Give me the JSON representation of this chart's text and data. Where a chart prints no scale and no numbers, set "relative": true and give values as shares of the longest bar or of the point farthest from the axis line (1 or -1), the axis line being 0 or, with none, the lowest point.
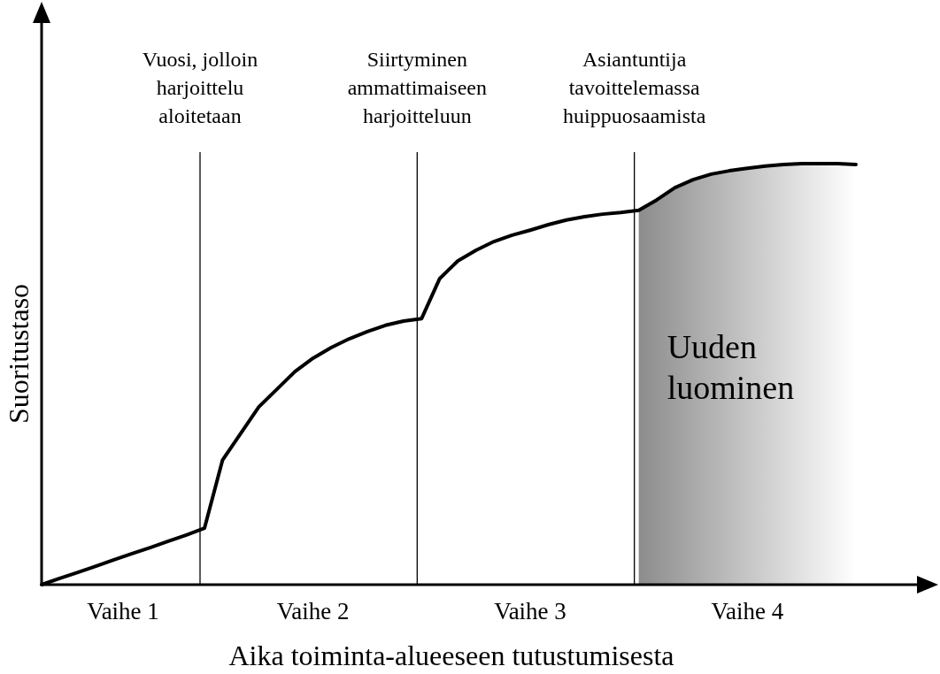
{
  "chart_data": {
    "type": "line",
    "relative": true,
    "xlabel": "Aika toiminta-alueeseen tutustumisesta",
    "ylabel": "Suoritustaso",
    "categories": [
      null,
      null,
      null,
      null,
      null,
      null,
      null,
      null,
      null,
      null,
      null,
      null,
      null,
      null,
      null,
      null,
      null,
      null,
      null,
      null,
      null,
      null,
      null,
      null,
      null,
      null,
      null,
      null,
      null,
      null,
      null,
      null,
      null,
      null,
      null,
      null,
      null,
      null,
      null,
      null,
      null,
      null,
      null,
      null,
      null,
      null
    ],
    "series": [
      {
        "color": "#000000",
        "values": [
          0,
          0.015,
          0.029,
          0.044,
          0.059,
          0.074,
          0.088,
          0.103,
          0.118,
          0.134,
          0.296,
          0.359,
          0.422,
          0.464,
          0.506,
          0.538,
          0.563,
          0.584,
          0.601,
          0.616,
          0.626,
          0.632,
          0.727,
          0.769,
          0.794,
          0.815,
          0.83,
          0.842,
          0.855,
          0.866,
          0.874,
          0.88,
          0.884,
          0.889,
          0.914,
          0.943,
          0.962,
          0.975,
          0.983,
          0.989,
          0.994,
          0.998,
          1,
          1,
          1,
          0.998
        ]
      }
    ],
    "annotations": [
      "Vuosi, jolloin harjoittelu aloitetaan",
      "Siirtyminen ammattimaiseen harjoitteluun",
      "Asiantuntija tavoittelemassa huippuosaamista",
      "Vaihe 1",
      "Vaihe 2",
      "Vaihe 3",
      "Vaihe 4",
      "Uuden luominen"
    ],
    "tick_labels": false,
    "grid": false,
    "legend": false,
    "marker": "none",
    "line_style": "solid"
  }
}
